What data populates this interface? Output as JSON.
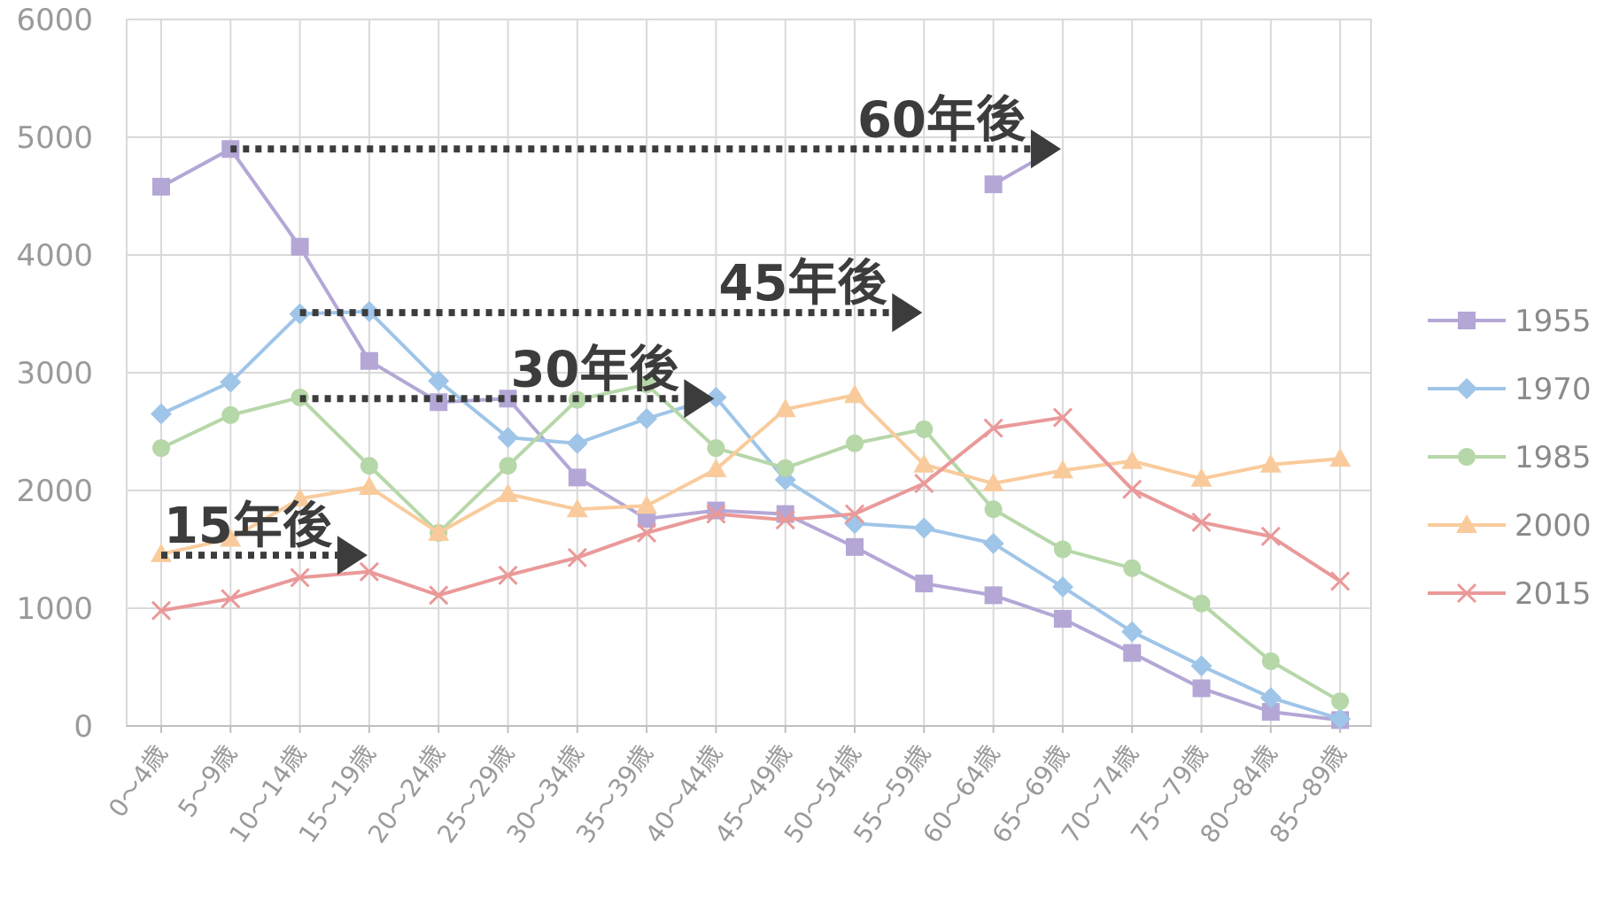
{
  "colors": {
    "1955": "#b4a7d6",
    "1970": "#9fc5e8",
    "1985": "#b6d7a8",
    "2000": "#f9cb9c",
    "2015": "#ea9999",
    "grid": "#d9d9d9",
    "axis": "#bfbfbf",
    "annotation": "#3c3c3c"
  },
  "chart_data": {
    "type": "line",
    "categories": [
      "0～4歳",
      "5～9歳",
      "10～14歳",
      "15～19歳",
      "20～24歳",
      "25～29歳",
      "30～34歳",
      "35～39歳",
      "40～44歳",
      "45～49歳",
      "50～54歳",
      "55～59歳",
      "60～64歳",
      "65～69歳",
      "70～74歳",
      "75～79歳",
      "80～84歳",
      "85～89歳"
    ],
    "ylim": [
      0,
      6000
    ],
    "yticks": [
      0,
      1000,
      2000,
      3000,
      4000,
      5000,
      6000
    ],
    "grid": true,
    "legend_position": "right",
    "series": [
      {
        "name": "1955",
        "marker": "square",
        "values": [
          4580,
          4900,
          4070,
          3100,
          2750,
          2780,
          2110,
          1760,
          1830,
          1800,
          1520,
          1210,
          1110,
          910,
          620,
          320,
          120,
          50
        ]
      },
      {
        "name": "1970",
        "marker": "diamond",
        "values": [
          2650,
          2920,
          3500,
          3520,
          2930,
          2450,
          2400,
          2610,
          2790,
          2090,
          1720,
          1680,
          1550,
          1180,
          800,
          510,
          240,
          60
        ]
      },
      {
        "name": "1985",
        "marker": "circle",
        "values": [
          2360,
          2640,
          2790,
          2210,
          1640,
          2210,
          2770,
          2900,
          2360,
          2190,
          2400,
          2520,
          1840,
          1500,
          1340,
          1040,
          550,
          210
        ]
      },
      {
        "name": "2000",
        "marker": "triangle",
        "values": [
          1460,
          1590,
          1930,
          2030,
          1640,
          1970,
          1840,
          1870,
          2180,
          2690,
          2810,
          2220,
          2060,
          2170,
          2250,
          2100,
          2220,
          2270
        ]
      },
      {
        "name": "2015",
        "marker": "x",
        "values": [
          980,
          1080,
          1260,
          1310,
          1110,
          1280,
          1430,
          1640,
          1800,
          1750,
          1800,
          2060,
          2530,
          2620,
          2010,
          1730,
          1610,
          1230
        ]
      }
    ],
    "annotations": [
      {
        "label": "15年後",
        "from_category": "0～4歳",
        "to_category": "15～19歳",
        "y": 1450
      },
      {
        "label": "30年後",
        "from_category": "10～14歳",
        "to_category": "40～44歳",
        "y": 2780
      },
      {
        "label": "45年後",
        "from_category": "10～14歳",
        "to_category": "55～59歳",
        "y": 3510
      },
      {
        "label": "60年後",
        "from_category": "5～9歳",
        "to_category": "65～69歳",
        "y": 4900
      }
    ],
    "extra_markers": [
      {
        "series": "1955",
        "category": "60～64歳",
        "value": 4600
      }
    ]
  }
}
